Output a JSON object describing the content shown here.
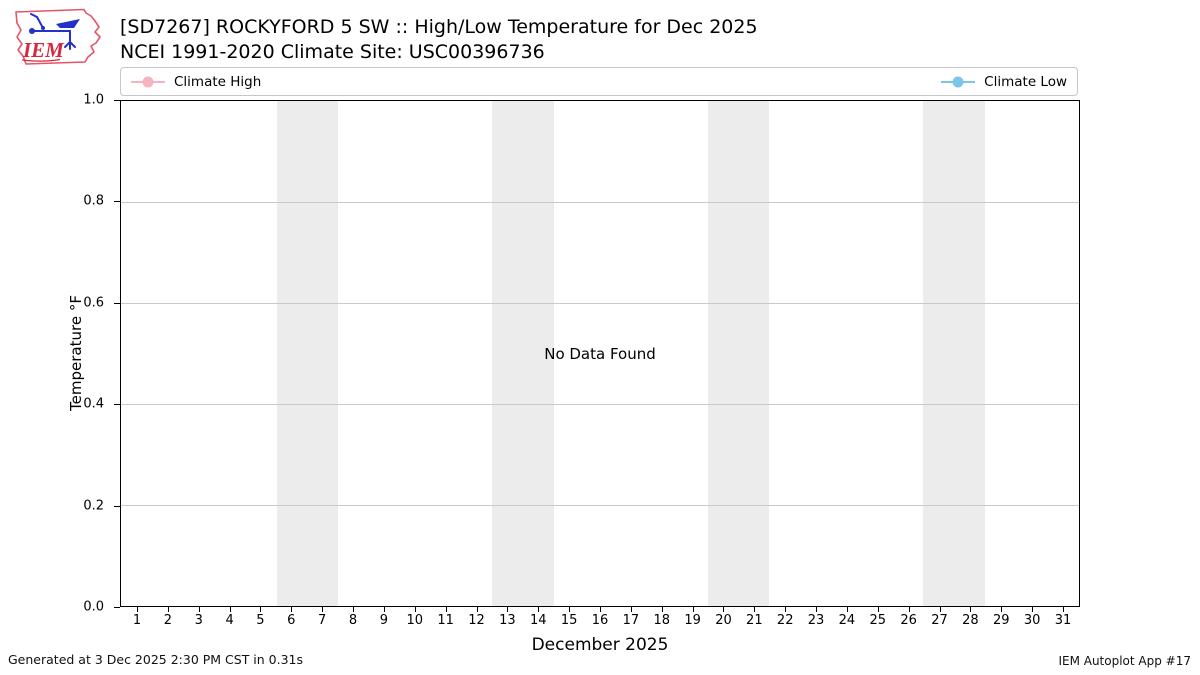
{
  "header": {
    "logo_text": "IEM"
  },
  "chart_data": {
    "type": "line",
    "title": "[SD7267] ROCKYFORD 5 SW :: High/Low Temperature for Dec 2025",
    "subtitle": "NCEI 1991-2020 Climate Site: USC00396736",
    "xlabel": "December 2025",
    "ylabel": "Temperature °F",
    "xlim": [
      0.45,
      31.55
    ],
    "ylim": [
      0.0,
      1.0
    ],
    "x_ticks": [
      1,
      2,
      3,
      4,
      5,
      6,
      7,
      8,
      9,
      10,
      11,
      12,
      13,
      14,
      15,
      16,
      17,
      18,
      19,
      20,
      21,
      22,
      23,
      24,
      25,
      26,
      27,
      28,
      29,
      30,
      31
    ],
    "y_tick_labels": [
      "0.0",
      "0.2",
      "0.4",
      "0.6",
      "0.8",
      "1.0"
    ],
    "grid": "horizontal gridlines only",
    "grid_color": "#c9c9c9",
    "weekend_bands": [
      [
        5.5,
        7.5
      ],
      [
        12.5,
        14.5
      ],
      [
        19.5,
        21.5
      ],
      [
        26.5,
        28.5
      ]
    ],
    "band_color": "#ececec",
    "legend_position": "top strip spanning plot width",
    "no_data_label": "No Data Found",
    "series": [
      {
        "name": "Climate High",
        "color": "#f8b3c1",
        "marker": "circle",
        "x": [],
        "values": []
      },
      {
        "name": "Climate Low",
        "color": "#7ec6e8",
        "marker": "circle",
        "x": [],
        "values": []
      }
    ]
  },
  "footer": {
    "generated": "Generated at 3 Dec 2025 2:30 PM CST in 0.31s",
    "app": "IEM Autoplot App #17"
  }
}
